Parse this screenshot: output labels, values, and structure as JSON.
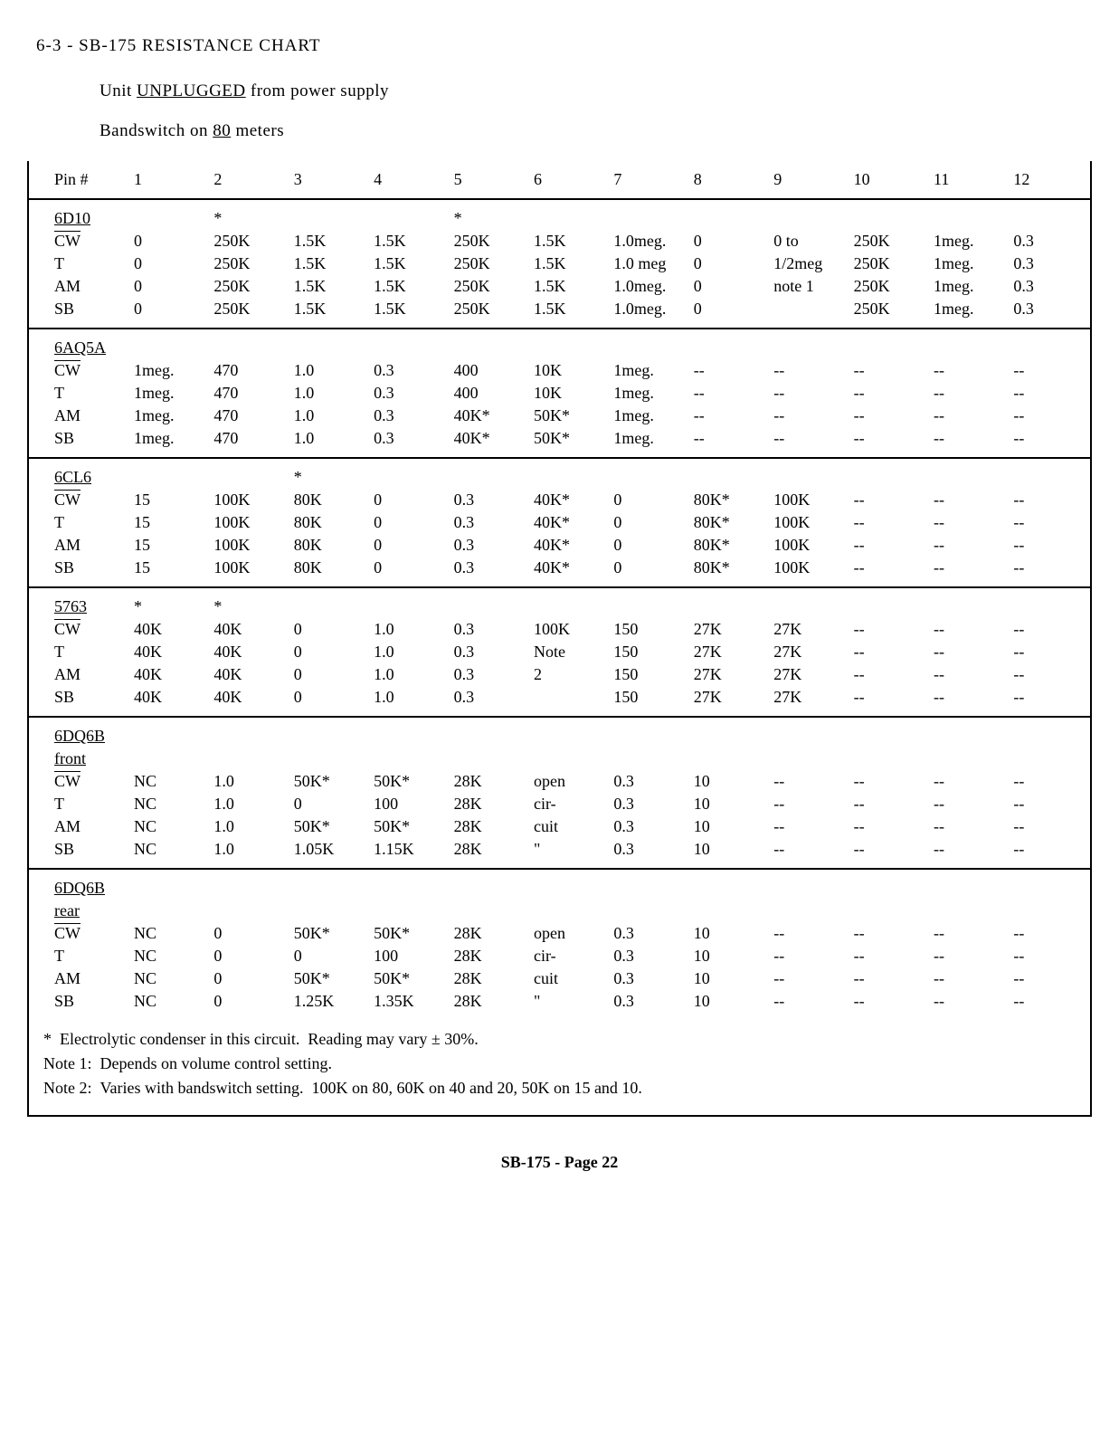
{
  "header": {
    "title_prefix": "6-3 - ",
    "title_main": "SB-175 RESISTANCE CHART",
    "sub1_pre": "Unit ",
    "sub1_u": "UNPLUGGED",
    "sub1_post": " from power supply",
    "sub2_pre": "Bandswitch on ",
    "sub2_u": "80",
    "sub2_post": " meters"
  },
  "columns": {
    "label": "Pin #",
    "pins": [
      "1",
      "2",
      "3",
      "4",
      "5",
      "6",
      "7",
      "8",
      "9",
      "10",
      "11",
      "12"
    ]
  },
  "sections": [
    {
      "tube": "6D10",
      "star_cols": {
        "2": "*",
        "5": "*"
      },
      "rows": [
        {
          "mode": "CW",
          "ov": true,
          "v": [
            "0",
            "250K",
            "1.5K",
            "1.5K",
            "250K",
            "1.5K",
            "1.0meg.",
            "0",
            "0 to",
            "250K",
            "1meg.",
            "0.3"
          ]
        },
        {
          "mode": "T",
          "v": [
            "0",
            "250K",
            "1.5K",
            "1.5K",
            "250K",
            "1.5K",
            "1.0 meg",
            "0",
            "1/2meg",
            "250K",
            "1meg.",
            "0.3"
          ]
        },
        {
          "mode": "AM",
          "v": [
            "0",
            "250K",
            "1.5K",
            "1.5K",
            "250K",
            "1.5K",
            "1.0meg.",
            "0",
            "note 1",
            "250K",
            "1meg.",
            "0.3"
          ]
        },
        {
          "mode": "SB",
          "v": [
            "0",
            "250K",
            "1.5K",
            "1.5K",
            "250K",
            "1.5K",
            "1.0meg.",
            "0",
            "",
            "250K",
            "1meg.",
            "0.3"
          ]
        }
      ]
    },
    {
      "tube": "6AQ5A",
      "rows": [
        {
          "mode": "CW",
          "ov": true,
          "v": [
            "1meg.",
            "470",
            "1.0",
            "0.3",
            "400",
            "10K",
            "1meg.",
            "--",
            "--",
            "--",
            "--",
            "--"
          ]
        },
        {
          "mode": "T",
          "v": [
            "1meg.",
            "470",
            "1.0",
            "0.3",
            "400",
            "10K",
            "1meg.",
            "--",
            "--",
            "--",
            "--",
            "--"
          ]
        },
        {
          "mode": "AM",
          "v": [
            "1meg.",
            "470",
            "1.0",
            "0.3",
            "40K*",
            "50K*",
            "1meg.",
            "--",
            "--",
            "--",
            "--",
            "--"
          ]
        },
        {
          "mode": "SB",
          "v": [
            "1meg.",
            "470",
            "1.0",
            "0.3",
            "40K*",
            "50K*",
            "1meg.",
            "--",
            "--",
            "--",
            "--",
            "--"
          ]
        }
      ]
    },
    {
      "tube": "6CL6",
      "star_cols": {
        "3": "*"
      },
      "rows": [
        {
          "mode": "CW",
          "ov": true,
          "v": [
            "15",
            "100K",
            "80K",
            "0",
            "0.3",
            "40K*",
            "0",
            "80K*",
            "100K",
            "--",
            "--",
            "--"
          ]
        },
        {
          "mode": "T",
          "v": [
            "15",
            "100K",
            "80K",
            "0",
            "0.3",
            "40K*",
            "0",
            "80K*",
            "100K",
            "--",
            "--",
            "--"
          ]
        },
        {
          "mode": "AM",
          "v": [
            "15",
            "100K",
            "80K",
            "0",
            "0.3",
            "40K*",
            "0",
            "80K*",
            "100K",
            "--",
            "--",
            "--"
          ]
        },
        {
          "mode": "SB",
          "v": [
            "15",
            "100K",
            "80K",
            "0",
            "0.3",
            "40K*",
            "0",
            "80K*",
            "100K",
            "--",
            "--",
            "--"
          ]
        }
      ]
    },
    {
      "tube": "5763",
      "star_cols": {
        "1": "*",
        "2": "*"
      },
      "rows": [
        {
          "mode": "CW",
          "ov": true,
          "v": [
            "40K",
            "40K",
            "0",
            "1.0",
            "0.3",
            "100K",
            "150",
            "27K",
            "27K",
            "--",
            "--",
            "--"
          ]
        },
        {
          "mode": "T",
          "v": [
            "40K",
            "40K",
            "0",
            "1.0",
            "0.3",
            "Note",
            "150",
            "27K",
            "27K",
            "--",
            "--",
            "--"
          ]
        },
        {
          "mode": "AM",
          "v": [
            "40K",
            "40K",
            "0",
            "1.0",
            "0.3",
            "2",
            "150",
            "27K",
            "27K",
            "--",
            "--",
            "--"
          ]
        },
        {
          "mode": "SB",
          "v": [
            "40K",
            "40K",
            "0",
            "1.0",
            "0.3",
            "",
            "150",
            "27K",
            "27K",
            "--",
            "--",
            "--"
          ]
        }
      ]
    },
    {
      "tube": "6DQ6B",
      "tube_sub": "front",
      "rows": [
        {
          "mode": "CW",
          "ov": true,
          "v": [
            "NC",
            "1.0",
            "50K*",
            "50K*",
            "28K",
            "open",
            "0.3",
            "10",
            "--",
            "--",
            "--",
            "--"
          ]
        },
        {
          "mode": "T",
          "v": [
            "NC",
            "1.0",
            "0",
            "100",
            "28K",
            "cir-",
            "0.3",
            "10",
            "--",
            "--",
            "--",
            "--"
          ]
        },
        {
          "mode": "AM",
          "v": [
            "NC",
            "1.0",
            "50K*",
            "50K*",
            "28K",
            "cuit",
            "0.3",
            "10",
            "--",
            "--",
            "--",
            "--"
          ]
        },
        {
          "mode": "SB",
          "v": [
            "NC",
            "1.0",
            "1.05K",
            "1.15K",
            "28K",
            "\"",
            "0.3",
            "10",
            "--",
            "--",
            "--",
            "--"
          ]
        }
      ]
    },
    {
      "tube": "6DQ6B",
      "tube_sub": "rear",
      "rows": [
        {
          "mode": "CW",
          "ov": true,
          "v": [
            "NC",
            "0",
            "50K*",
            "50K*",
            "28K",
            "open",
            "0.3",
            "10",
            "--",
            "--",
            "--",
            "--"
          ]
        },
        {
          "mode": "T",
          "v": [
            "NC",
            "0",
            "0",
            "100",
            "28K",
            "cir-",
            "0.3",
            "10",
            "--",
            "--",
            "--",
            "--"
          ]
        },
        {
          "mode": "AM",
          "v": [
            "NC",
            "0",
            "50K*",
            "50K*",
            "28K",
            "cuit",
            "0.3",
            "10",
            "--",
            "--",
            "--",
            "--"
          ]
        },
        {
          "mode": "SB",
          "v": [
            "NC",
            "0",
            "1.25K",
            "1.35K",
            "28K",
            "\"",
            "0.3",
            "10",
            "--",
            "--",
            "--",
            "--"
          ]
        }
      ]
    }
  ],
  "notes": {
    "star": "*  Electrolytic condenser in this circuit.  Reading may vary ± 30%.",
    "n1": "Note 1:  Depends on volume control setting.",
    "n2": "Note 2:  Varies with bandswitch setting.  100K on 80, 60K on 40 and 20, 50K on 15 and 10."
  },
  "footer": "SB-175 - Page 22"
}
